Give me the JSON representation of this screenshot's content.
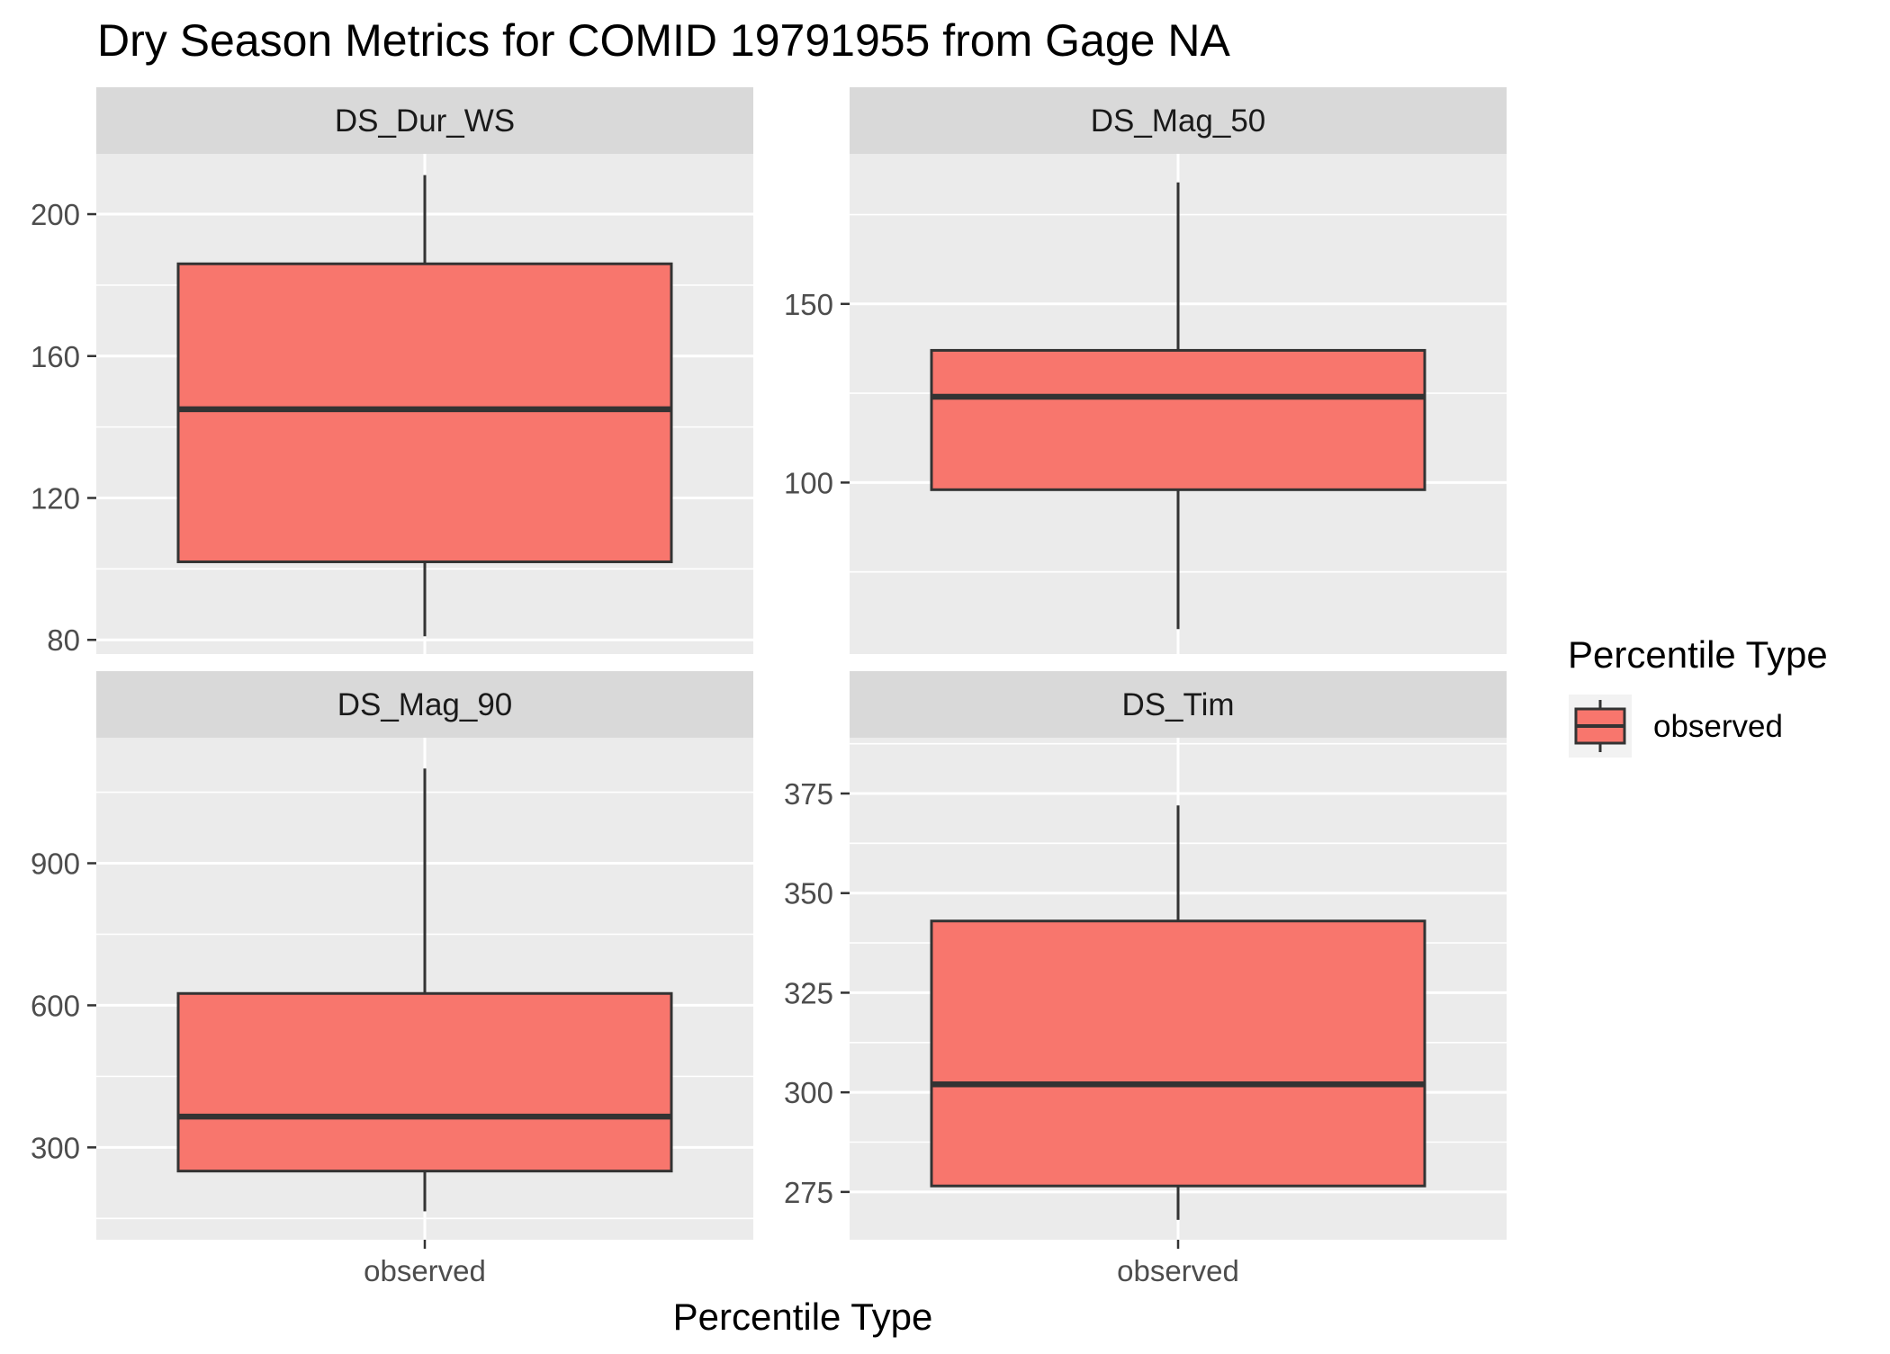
{
  "chart_data": {
    "type": "boxplot",
    "title": "Dry Season Metrics for COMID 19791955 from Gage NA",
    "xlabel": "Percentile Type",
    "ylabel": "",
    "categories": [
      "observed"
    ],
    "legend": {
      "title": "Percentile Type",
      "position": "right",
      "entries": [
        {
          "label": "observed",
          "color": "#f8766d"
        }
      ]
    },
    "colors": {
      "box_fill": "#f8766d",
      "box_stroke": "#333333",
      "panel_background": "#ebebeb",
      "strip_background": "#d9d9d9",
      "grid": "#ffffff"
    },
    "grid": true,
    "facets": [
      {
        "name": "DS_Dur_WS",
        "ylim": [
          76,
          217
        ],
        "y_ticks": [
          80,
          120,
          160,
          200
        ],
        "box": {
          "category": "observed",
          "min": 81,
          "q1": 102,
          "median": 145,
          "q3": 186,
          "max": 211
        }
      },
      {
        "name": "DS_Mag_50",
        "ylim": [
          52,
          192
        ],
        "y_ticks": [
          100,
          150
        ],
        "box": {
          "category": "observed",
          "min": 59,
          "q1": 98,
          "median": 124,
          "q3": 137,
          "max": 184
        }
      },
      {
        "name": "DS_Mag_90",
        "ylim": [
          105,
          1165
        ],
        "y_ticks": [
          300,
          600,
          900
        ],
        "box": {
          "category": "observed",
          "min": 165,
          "q1": 250,
          "median": 365,
          "q3": 625,
          "max": 1100
        }
      },
      {
        "name": "DS_Tim",
        "ylim": [
          263,
          389
        ],
        "y_ticks": [
          275,
          300,
          325,
          350,
          375
        ],
        "box": {
          "category": "observed",
          "min": 268,
          "q1": 276.5,
          "median": 302,
          "q3": 343,
          "max": 372
        }
      }
    ]
  }
}
